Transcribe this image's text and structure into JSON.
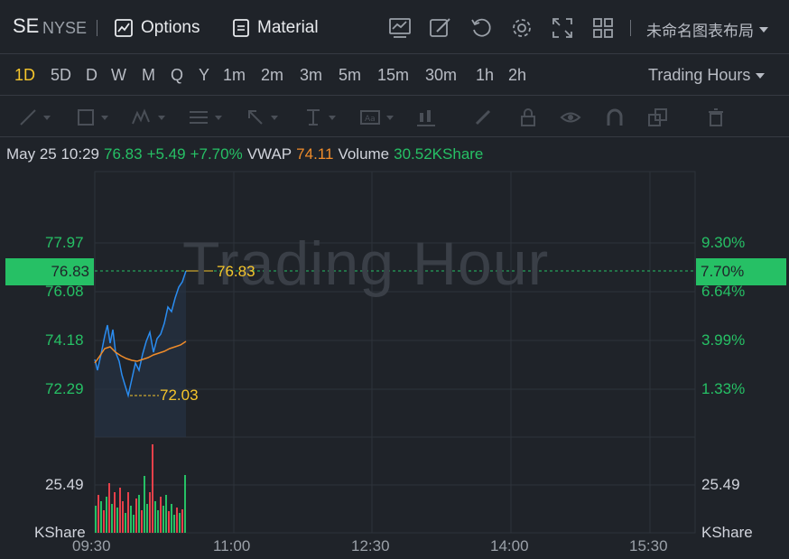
{
  "header": {
    "symbol": "SE",
    "exchange": "NYSE",
    "options_label": "Options",
    "material_label": "Material",
    "layout_name": "未命名图表布局"
  },
  "timeframes": [
    "1D",
    "5D",
    "D",
    "W",
    "M",
    "Q",
    "Y",
    "1m",
    "2m",
    "3m",
    "5m",
    "15m",
    "30m",
    "1h",
    "2h"
  ],
  "active_timeframe": "1D",
  "trading_hours_label": "Trading Hours",
  "quote": {
    "datetime": "May 25 10:29",
    "price": "76.83",
    "change": "+5.49",
    "change_pct": "+7.70%",
    "vwap_label": "VWAP",
    "vwap": "74.11",
    "volume_label": "Volume",
    "volume": "30.52KShare"
  },
  "chart": {
    "watermark": "Trading Hour",
    "price_axis_left": [
      "77.97",
      "76.08",
      "74.18",
      "72.29"
    ],
    "price_axis_right": [
      "9.30%",
      "6.64%",
      "3.99%",
      "1.33%"
    ],
    "current_price_tag": "76.83",
    "current_pct_tag": "7.70%",
    "high_label": "76.83",
    "low_label": "72.03",
    "volume_axis_left": "25.49",
    "volume_axis_right": "25.49",
    "volume_unit_left": "KShare",
    "volume_unit_right": "KShare",
    "time_axis": [
      "09:30",
      "11:00",
      "12:30",
      "14:00",
      "15:30"
    ]
  },
  "colors": {
    "up": "#26c065",
    "down": "#e5404a",
    "price_line": "#2a8cf0",
    "vwap_line": "#f08c2a",
    "highlight": "#f5c52b"
  }
}
